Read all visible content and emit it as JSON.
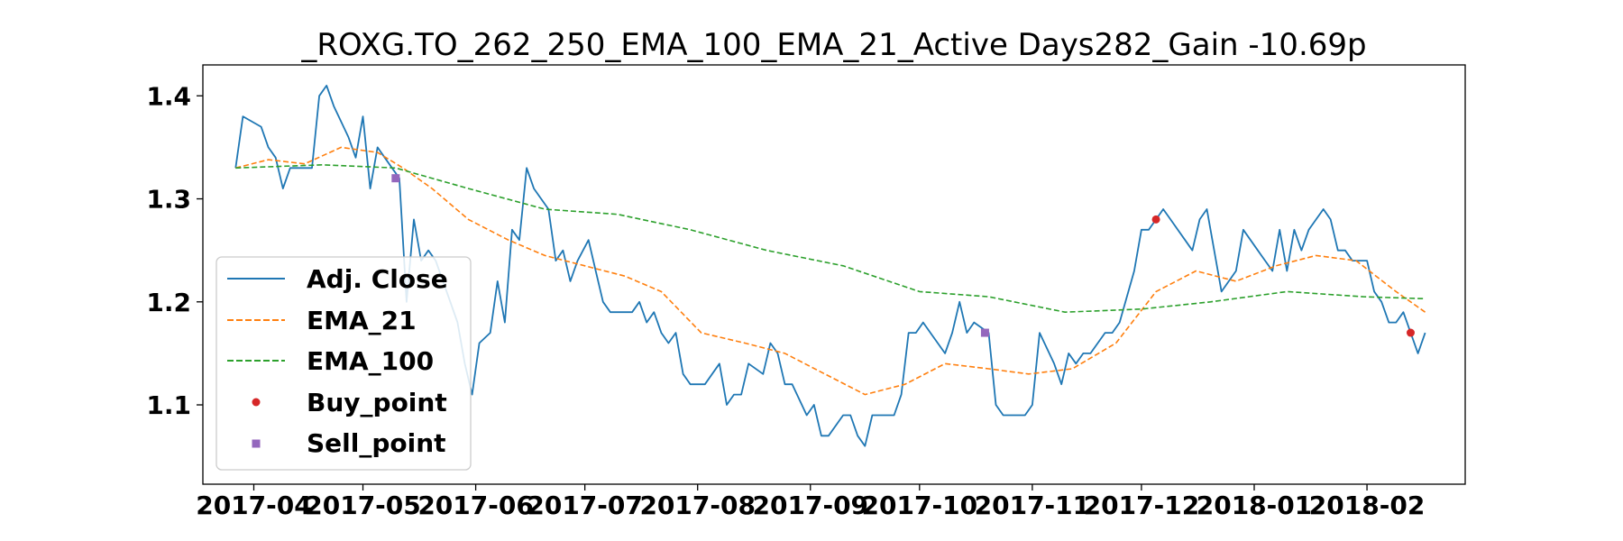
{
  "chart_data": {
    "type": "line",
    "title": "_ROXG.TO_262_250_EMA_100_EMA_21_Active Days282_Gain -10.69p",
    "xlabel": "",
    "ylabel": "",
    "x_ticks": [
      "2017-04",
      "2017-05",
      "2017-06",
      "2017-07",
      "2017-08",
      "2017-09",
      "2017-10",
      "2017-11",
      "2017-12",
      "2018-01",
      "2018-02"
    ],
    "y_ticks": [
      "1.1",
      "1.2",
      "1.3",
      "1.4"
    ],
    "xlim": [
      "2017-03-18",
      "2018-02-28"
    ],
    "ylim": [
      1.023,
      1.43
    ],
    "grid": false,
    "legend_position": "center-left",
    "series": [
      {
        "name": "Adj. Close",
        "style": "solid",
        "color": "#1f77b4",
        "points": [
          [
            "2017-03-27",
            1.33
          ],
          [
            "2017-03-29",
            1.38
          ],
          [
            "2017-04-03",
            1.37
          ],
          [
            "2017-04-05",
            1.35
          ],
          [
            "2017-04-07",
            1.34
          ],
          [
            "2017-04-09",
            1.31
          ],
          [
            "2017-04-11",
            1.33
          ],
          [
            "2017-04-13",
            1.33
          ],
          [
            "2017-04-17",
            1.33
          ],
          [
            "2017-04-19",
            1.4
          ],
          [
            "2017-04-21",
            1.41
          ],
          [
            "2017-04-23",
            1.39
          ],
          [
            "2017-04-27",
            1.36
          ],
          [
            "2017-04-29",
            1.34
          ],
          [
            "2017-05-01",
            1.38
          ],
          [
            "2017-05-03",
            1.31
          ],
          [
            "2017-05-05",
            1.35
          ],
          [
            "2017-05-07",
            1.34
          ],
          [
            "2017-05-09",
            1.33
          ],
          [
            "2017-05-11",
            1.32
          ],
          [
            "2017-05-13",
            1.2
          ],
          [
            "2017-05-15",
            1.28
          ],
          [
            "2017-05-17",
            1.24
          ],
          [
            "2017-05-19",
            1.25
          ],
          [
            "2017-05-21",
            1.24
          ],
          [
            "2017-05-23",
            1.22
          ],
          [
            "2017-05-25",
            1.2
          ],
          [
            "2017-05-27",
            1.18
          ],
          [
            "2017-05-29",
            1.14
          ],
          [
            "2017-05-31",
            1.11
          ],
          [
            "2017-06-02",
            1.16
          ],
          [
            "2017-06-05",
            1.17
          ],
          [
            "2017-06-07",
            1.22
          ],
          [
            "2017-06-09",
            1.18
          ],
          [
            "2017-06-11",
            1.27
          ],
          [
            "2017-06-13",
            1.26
          ],
          [
            "2017-06-15",
            1.33
          ],
          [
            "2017-06-17",
            1.31
          ],
          [
            "2017-06-21",
            1.29
          ],
          [
            "2017-06-23",
            1.24
          ],
          [
            "2017-06-25",
            1.25
          ],
          [
            "2017-06-27",
            1.22
          ],
          [
            "2017-06-29",
            1.24
          ],
          [
            "2017-07-02",
            1.26
          ],
          [
            "2017-07-04",
            1.23
          ],
          [
            "2017-07-06",
            1.2
          ],
          [
            "2017-07-08",
            1.19
          ],
          [
            "2017-07-14",
            1.19
          ],
          [
            "2017-07-16",
            1.2
          ],
          [
            "2017-07-18",
            1.18
          ],
          [
            "2017-07-20",
            1.19
          ],
          [
            "2017-07-22",
            1.17
          ],
          [
            "2017-07-24",
            1.16
          ],
          [
            "2017-07-26",
            1.17
          ],
          [
            "2017-07-28",
            1.13
          ],
          [
            "2017-07-30",
            1.12
          ],
          [
            "2017-08-03",
            1.12
          ],
          [
            "2017-08-05",
            1.13
          ],
          [
            "2017-08-07",
            1.14
          ],
          [
            "2017-08-09",
            1.1
          ],
          [
            "2017-08-11",
            1.11
          ],
          [
            "2017-08-13",
            1.11
          ],
          [
            "2017-08-15",
            1.14
          ],
          [
            "2017-08-19",
            1.13
          ],
          [
            "2017-08-21",
            1.16
          ],
          [
            "2017-08-23",
            1.15
          ],
          [
            "2017-08-25",
            1.12
          ],
          [
            "2017-08-27",
            1.12
          ],
          [
            "2017-08-31",
            1.09
          ],
          [
            "2017-09-02",
            1.1
          ],
          [
            "2017-09-04",
            1.07
          ],
          [
            "2017-09-06",
            1.07
          ],
          [
            "2017-09-10",
            1.09
          ],
          [
            "2017-09-12",
            1.09
          ],
          [
            "2017-09-14",
            1.07
          ],
          [
            "2017-09-16",
            1.06
          ],
          [
            "2017-09-18",
            1.09
          ],
          [
            "2017-09-20",
            1.09
          ],
          [
            "2017-09-24",
            1.09
          ],
          [
            "2017-09-26",
            1.11
          ],
          [
            "2017-09-28",
            1.17
          ],
          [
            "2017-09-30",
            1.17
          ],
          [
            "2017-10-02",
            1.18
          ],
          [
            "2017-10-04",
            1.17
          ],
          [
            "2017-10-06",
            1.16
          ],
          [
            "2017-10-08",
            1.15
          ],
          [
            "2017-10-10",
            1.17
          ],
          [
            "2017-10-12",
            1.2
          ],
          [
            "2017-10-14",
            1.17
          ],
          [
            "2017-10-16",
            1.18
          ],
          [
            "2017-10-20",
            1.17
          ],
          [
            "2017-10-22",
            1.1
          ],
          [
            "2017-10-24",
            1.09
          ],
          [
            "2017-10-30",
            1.09
          ],
          [
            "2017-11-01",
            1.1
          ],
          [
            "2017-11-03",
            1.17
          ],
          [
            "2017-11-07",
            1.14
          ],
          [
            "2017-11-09",
            1.12
          ],
          [
            "2017-11-11",
            1.15
          ],
          [
            "2017-11-13",
            1.14
          ],
          [
            "2017-11-15",
            1.15
          ],
          [
            "2017-11-17",
            1.15
          ],
          [
            "2017-11-19",
            1.16
          ],
          [
            "2017-11-21",
            1.17
          ],
          [
            "2017-11-23",
            1.17
          ],
          [
            "2017-11-25",
            1.18
          ],
          [
            "2017-11-29",
            1.23
          ],
          [
            "2017-12-01",
            1.27
          ],
          [
            "2017-12-03",
            1.27
          ],
          [
            "2017-12-05",
            1.28
          ],
          [
            "2017-12-07",
            1.29
          ],
          [
            "2017-12-09",
            1.28
          ],
          [
            "2017-12-13",
            1.26
          ],
          [
            "2017-12-15",
            1.25
          ],
          [
            "2017-12-17",
            1.28
          ],
          [
            "2017-12-19",
            1.29
          ],
          [
            "2017-12-21",
            1.25
          ],
          [
            "2017-12-23",
            1.21
          ],
          [
            "2017-12-25",
            1.22
          ],
          [
            "2017-12-27",
            1.23
          ],
          [
            "2017-12-29",
            1.27
          ],
          [
            "2018-01-02",
            1.25
          ],
          [
            "2018-01-04",
            1.24
          ],
          [
            "2018-01-06",
            1.23
          ],
          [
            "2018-01-08",
            1.27
          ],
          [
            "2018-01-10",
            1.23
          ],
          [
            "2018-01-12",
            1.27
          ],
          [
            "2018-01-14",
            1.25
          ],
          [
            "2018-01-16",
            1.27
          ],
          [
            "2018-01-18",
            1.28
          ],
          [
            "2018-01-20",
            1.29
          ],
          [
            "2018-01-22",
            1.28
          ],
          [
            "2018-01-24",
            1.25
          ],
          [
            "2018-01-26",
            1.25
          ],
          [
            "2018-01-28",
            1.24
          ],
          [
            "2018-02-01",
            1.24
          ],
          [
            "2018-02-03",
            1.21
          ],
          [
            "2018-02-05",
            1.2
          ],
          [
            "2018-02-07",
            1.18
          ],
          [
            "2018-02-09",
            1.18
          ],
          [
            "2018-02-11",
            1.19
          ],
          [
            "2018-02-13",
            1.17
          ],
          [
            "2018-02-15",
            1.15
          ],
          [
            "2018-02-17",
            1.17
          ]
        ]
      },
      {
        "name": "EMA_21",
        "style": "dashed",
        "color": "#ff7f0e",
        "points": [
          [
            "2017-03-27",
            1.33
          ],
          [
            "2017-04-05",
            1.338
          ],
          [
            "2017-04-15",
            1.334
          ],
          [
            "2017-04-25",
            1.35
          ],
          [
            "2017-05-05",
            1.345
          ],
          [
            "2017-05-12",
            1.33
          ],
          [
            "2017-05-20",
            1.31
          ],
          [
            "2017-05-30",
            1.28
          ],
          [
            "2017-06-10",
            1.26
          ],
          [
            "2017-06-20",
            1.245
          ],
          [
            "2017-07-01",
            1.235
          ],
          [
            "2017-07-12",
            1.225
          ],
          [
            "2017-07-22",
            1.21
          ],
          [
            "2017-08-02",
            1.17
          ],
          [
            "2017-08-14",
            1.16
          ],
          [
            "2017-08-25",
            1.15
          ],
          [
            "2017-09-05",
            1.13
          ],
          [
            "2017-09-16",
            1.11
          ],
          [
            "2017-09-27",
            1.12
          ],
          [
            "2017-10-08",
            1.14
          ],
          [
            "2017-10-20",
            1.135
          ],
          [
            "2017-10-31",
            1.13
          ],
          [
            "2017-11-12",
            1.135
          ],
          [
            "2017-11-24",
            1.16
          ],
          [
            "2017-12-05",
            1.21
          ],
          [
            "2017-12-16",
            1.23
          ],
          [
            "2017-12-27",
            1.22
          ],
          [
            "2018-01-07",
            1.235
          ],
          [
            "2018-01-18",
            1.245
          ],
          [
            "2018-01-29",
            1.24
          ],
          [
            "2018-02-09",
            1.21
          ],
          [
            "2018-02-17",
            1.19
          ]
        ]
      },
      {
        "name": "EMA_100",
        "style": "dashed",
        "color": "#2ca02c",
        "points": [
          [
            "2017-03-27",
            1.33
          ],
          [
            "2017-04-20",
            1.333
          ],
          [
            "2017-05-10",
            1.33
          ],
          [
            "2017-05-30",
            1.31
          ],
          [
            "2017-06-20",
            1.29
          ],
          [
            "2017-07-10",
            1.285
          ],
          [
            "2017-07-30",
            1.27
          ],
          [
            "2017-08-20",
            1.25
          ],
          [
            "2017-09-10",
            1.235
          ],
          [
            "2017-10-01",
            1.21
          ],
          [
            "2017-10-20",
            1.205
          ],
          [
            "2017-11-10",
            1.19
          ],
          [
            "2017-12-01",
            1.193
          ],
          [
            "2017-12-20",
            1.2
          ],
          [
            "2018-01-10",
            1.21
          ],
          [
            "2018-01-31",
            1.205
          ],
          [
            "2018-02-17",
            1.203
          ]
        ]
      }
    ],
    "markers": [
      {
        "name": "Buy_point",
        "shape": "circle",
        "color": "#d62728",
        "points": [
          [
            "2017-12-05",
            1.28
          ],
          [
            "2018-02-13",
            1.17
          ]
        ]
      },
      {
        "name": "Sell_point",
        "shape": "square",
        "color": "#9467bd",
        "points": [
          [
            "2017-05-10",
            1.32
          ],
          [
            "2017-10-19",
            1.17
          ]
        ]
      }
    ]
  }
}
